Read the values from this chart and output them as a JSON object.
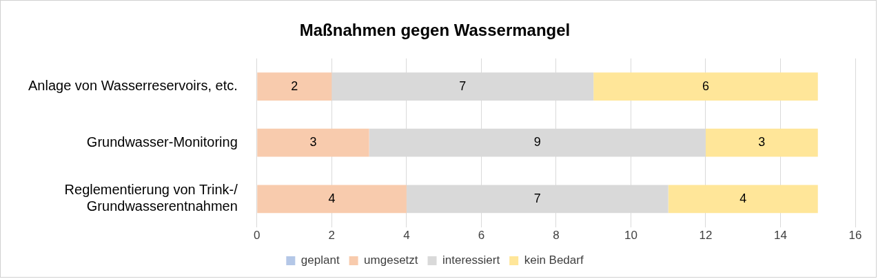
{
  "chart_data": {
    "type": "bar",
    "orientation": "horizontal",
    "stacked": true,
    "title": "Maßnahmen gegen Wassermangel",
    "categories": [
      "Anlage von Wasserreservoirs, etc.",
      "Grundwasser-Monitoring",
      "Reglementierung von Trink-/\nGrundwasserentnahmen"
    ],
    "series": [
      {
        "name": "geplant",
        "color": "#b4c7e7",
        "values": [
          null,
          null,
          null
        ]
      },
      {
        "name": "umgesetzt",
        "color": "#f8cbad",
        "values": [
          2,
          3,
          4
        ]
      },
      {
        "name": "interessiert",
        "color": "#d9d9d9",
        "values": [
          7,
          9,
          7
        ]
      },
      {
        "name": "kein Bedarf",
        "color": "#ffe699",
        "values": [
          6,
          3,
          4
        ]
      }
    ],
    "xlim": [
      0,
      16
    ],
    "xticks": [
      0,
      2,
      4,
      6,
      8,
      10,
      12,
      14,
      16
    ],
    "grid": "x",
    "legend": "bottom",
    "data_labels": true
  }
}
